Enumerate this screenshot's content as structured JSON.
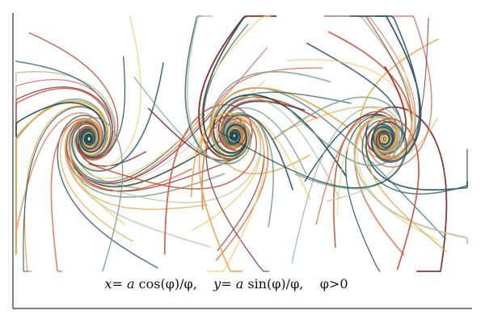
{
  "figure": {
    "formula_parts": [
      "x",
      "= ",
      "a",
      " cos(φ)/φ,",
      "y",
      "= ",
      "a",
      " sin(φ)/φ,",
      "φ>0"
    ]
  },
  "spirals": [
    {
      "name": "left-cluster",
      "colors": [
        "#8b2e2e",
        "#c8553d",
        "#e8a64a",
        "#f2cf7a",
        "#7aa38e",
        "#2f5f6a",
        "#1f4854",
        "#e07a5f",
        "#b5c7a0"
      ]
    },
    {
      "name": "middle-cluster",
      "colors": [
        "#8b2e2e",
        "#c8553d",
        "#e8a64a",
        "#f2cf7a",
        "#7aa38e",
        "#2f5f6a",
        "#1f4854",
        "#e07a5f",
        "#b5c7a0"
      ]
    },
    {
      "name": "right-cluster",
      "colors": [
        "#8b2e2e",
        "#c8553d",
        "#e8a64a",
        "#f2cf7a",
        "#7aa38e",
        "#2f5f6a",
        "#1f4854",
        "#e07a5f",
        "#b5c7a0"
      ]
    }
  ]
}
